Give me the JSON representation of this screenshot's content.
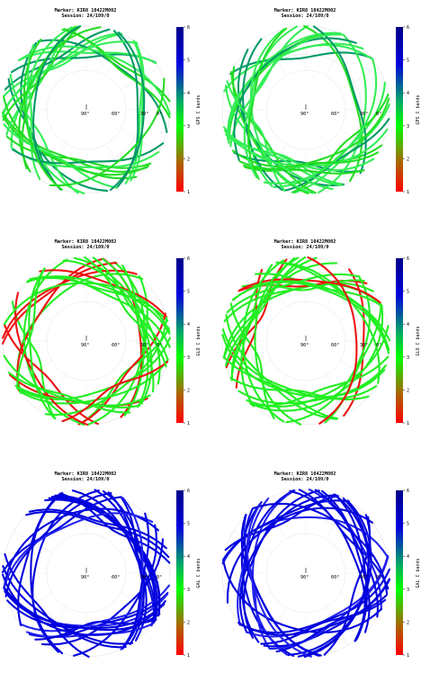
{
  "panels": [
    {
      "marker": "Marker: KIR8 10422M002",
      "session": "Session: 24/109/0",
      "cb_label": "GPS C bands",
      "palette": "gps"
    },
    {
      "marker": "Marker: KIR8 10422M002",
      "session": "Session: 24/109/0",
      "cb_label": "GPS C bands",
      "palette": "gps"
    },
    {
      "marker": "Marker: KIR8 10422M002",
      "session": "Session: 24/109/0",
      "cb_label": "GLO C bands",
      "palette": "glo"
    },
    {
      "marker": "Marker: KIR8 10422M002",
      "session": "Session: 24/109/0",
      "cb_label": "GLO C bands",
      "palette": "glo"
    },
    {
      "marker": "Marker: KIR8 10422M002",
      "session": "Session: 24/109/0",
      "cb_label": "GAL C bands",
      "palette": "gal"
    },
    {
      "marker": "Marker: KIR8 10422M002",
      "session": "Session: 24/109/0",
      "cb_label": "GAL C bands",
      "palette": "gal"
    }
  ],
  "polar_labels": [
    "90°",
    "60°",
    "30°",
    "0°"
  ],
  "colorbar_ticks": [
    "1",
    "2",
    "3",
    "4",
    "5",
    "6"
  ],
  "chart_data": {
    "type": "scatter",
    "projection": "polar skyplot",
    "color_scale": {
      "min": 1,
      "max": 6,
      "colors": [
        "#ff0000",
        "#00ff00",
        "#0000cc"
      ]
    },
    "dominant_value": {
      "GPS": 3,
      "GLO": 3,
      "GAL": 5.5
    }
  }
}
